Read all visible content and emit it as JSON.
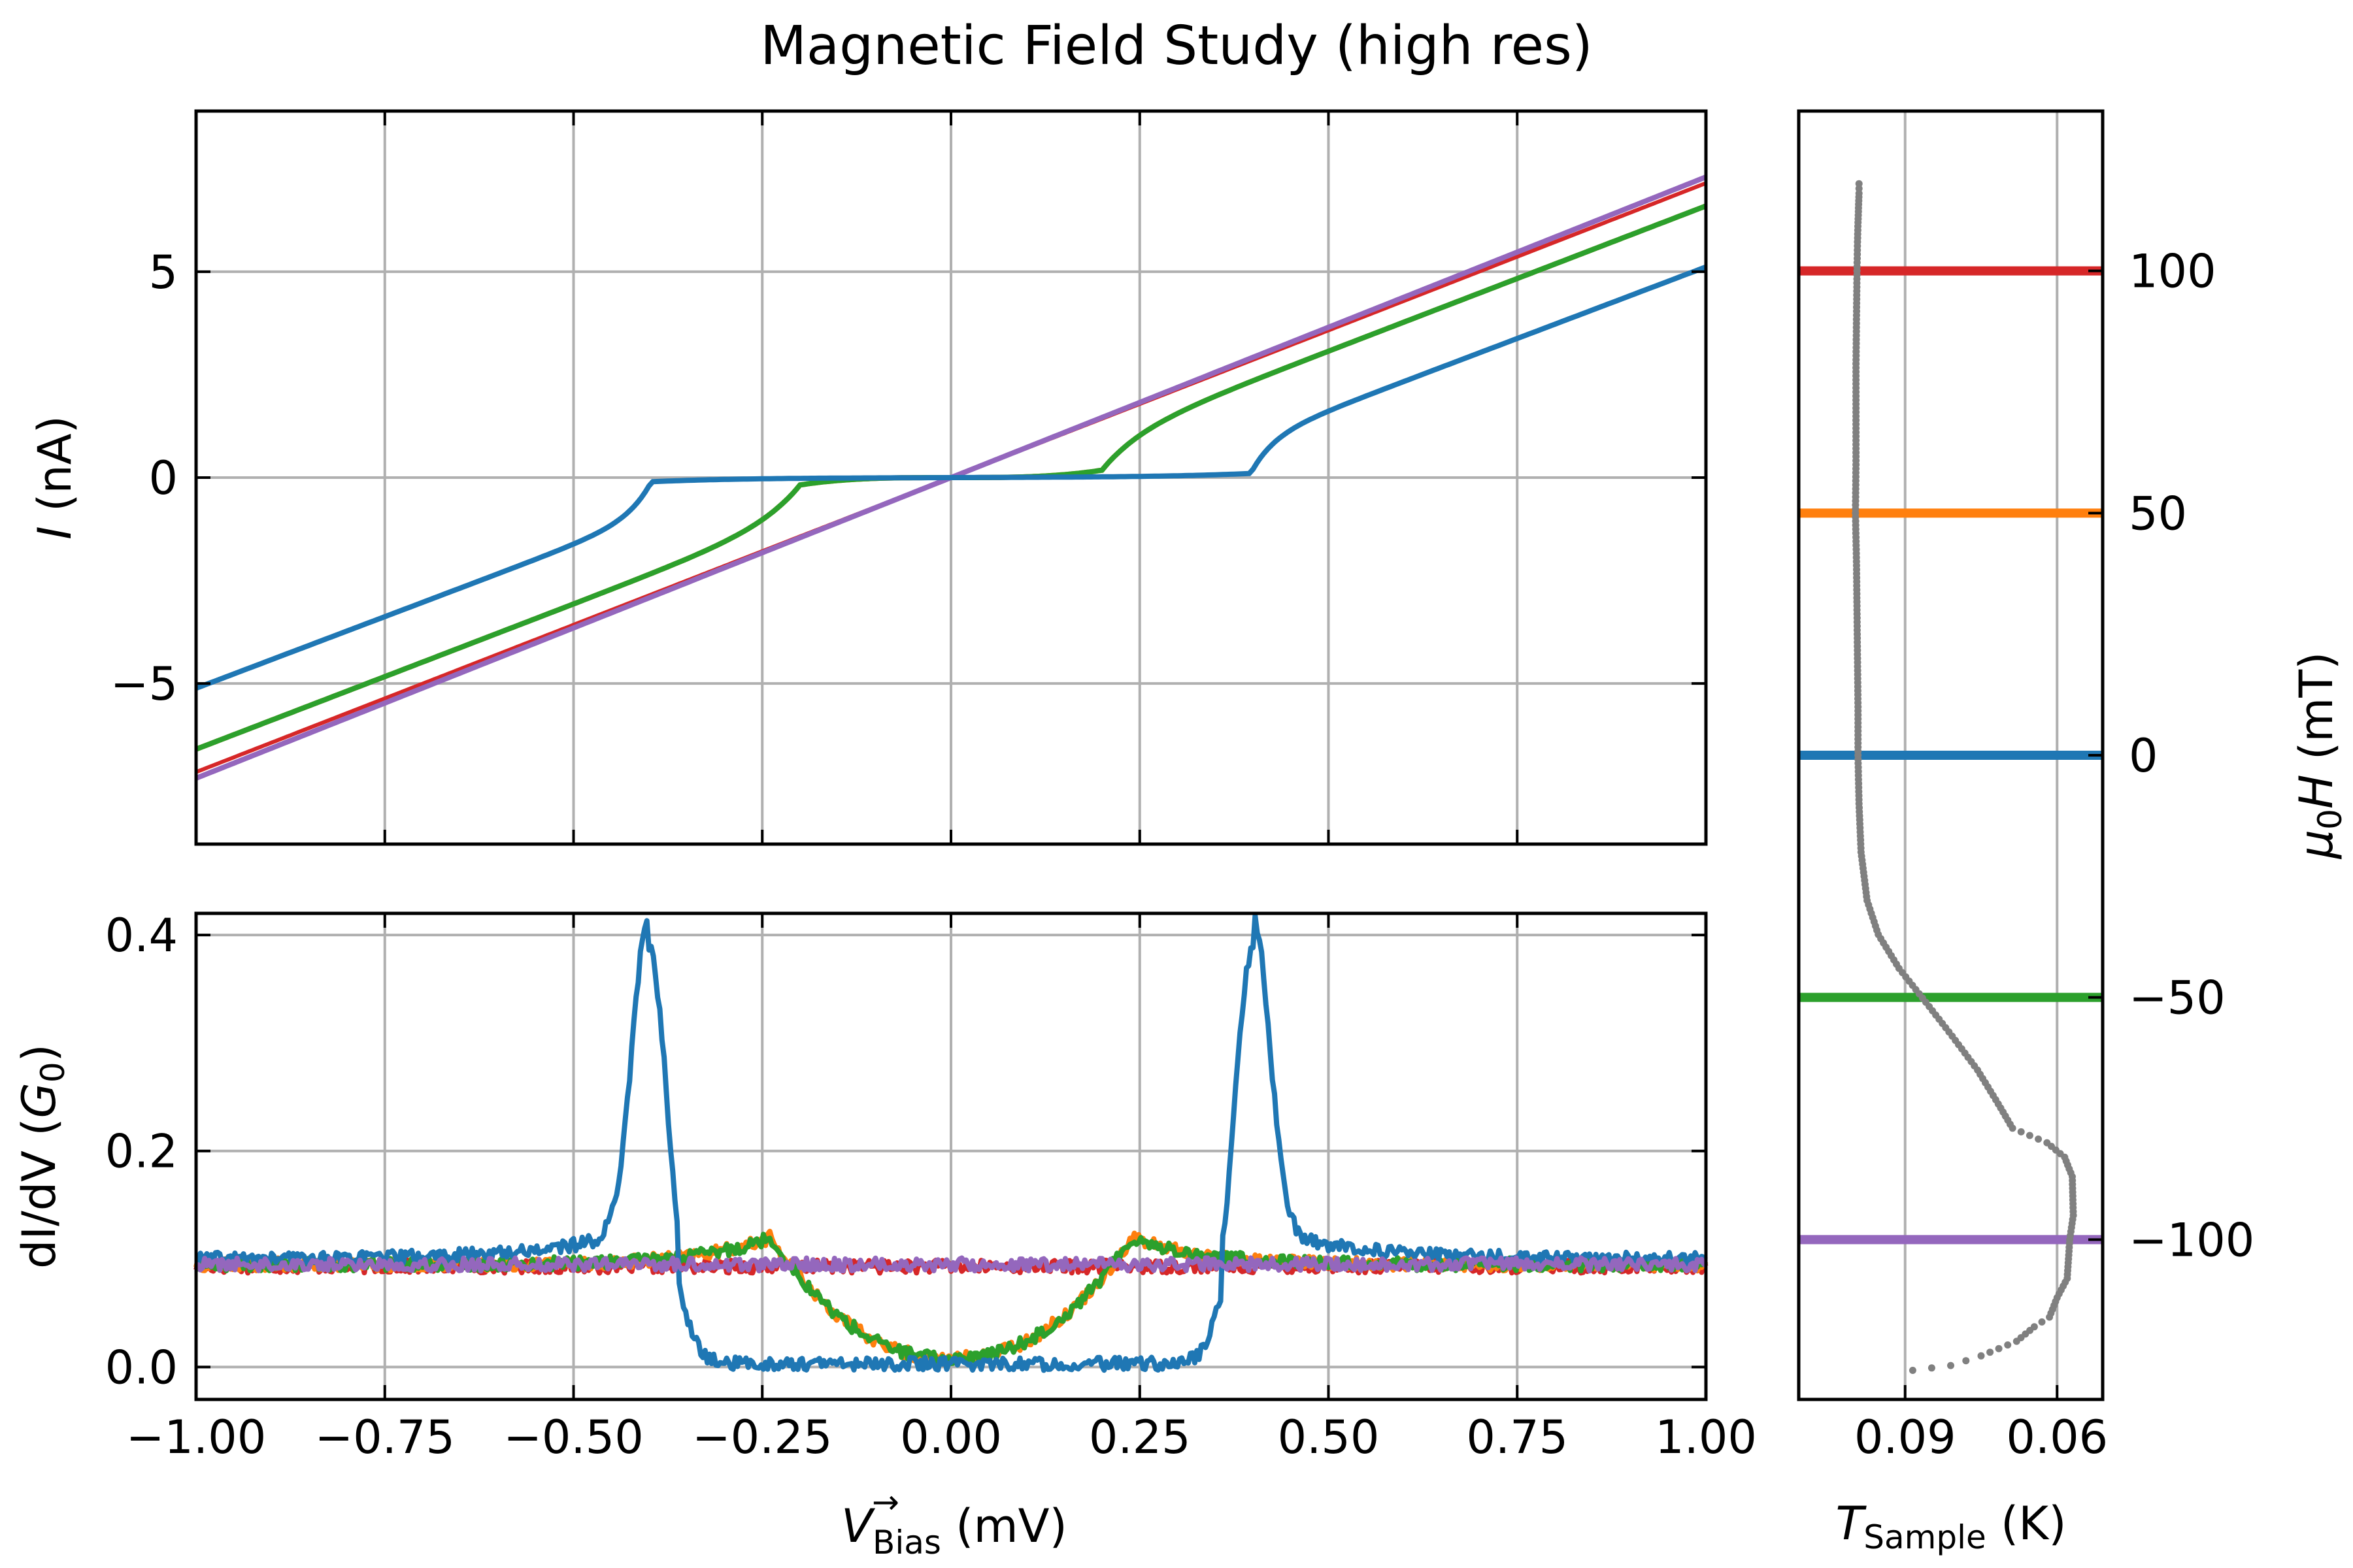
{
  "title": "Magnetic Field Study (high res)",
  "colors": {
    "blue": "#1f77b4",
    "orange": "#ff7f0e",
    "green": "#2ca02c",
    "red": "#d62728",
    "purple": "#9467bd",
    "gray": "#808080",
    "grid": "#b0b0b0"
  },
  "axes": {
    "x_label_main": "V",
    "x_label_sub": "Bias",
    "x_label_arrow": "→",
    "x_label_unit": " (mV)",
    "iv_ylabel_var": "I",
    "iv_ylabel_unit": " (nA)",
    "didv_ylabel_prefix": "dI/dV (",
    "didv_ylabel_var": "G",
    "didv_ylabel_sub": "0",
    "didv_ylabel_suffix": ")",
    "temp_xlabel_var": "T",
    "temp_xlabel_sub": "Sample",
    "temp_xlabel_unit": " (K)",
    "field_ylabel_mu": "μ",
    "field_ylabel_sub": "0",
    "field_ylabel_var": "H",
    "field_ylabel_unit": " (mT)"
  },
  "chart_data": [
    {
      "type": "line",
      "panel": "I-V",
      "xlabel": "V_Bias (mV)",
      "ylabel": "I (nA)",
      "xlim": [
        -1.0,
        1.0
      ],
      "ylim": [
        -8.9,
        8.9
      ],
      "grid": true,
      "xticks": [
        -1.0,
        -0.75,
        -0.5,
        -0.25,
        0.0,
        0.25,
        0.5,
        0.75,
        1.0
      ],
      "yticks": [
        -5,
        0,
        5
      ],
      "ytick_labels": [
        "−5",
        "0",
        "5"
      ],
      "series": [
        {
          "field_mT": 100,
          "color": "red",
          "shape": "linear",
          "slope": 7.15,
          "gap_mV": 0
        },
        {
          "field_mT": 50,
          "color": "orange",
          "shape": "bcs",
          "slope": 7.05,
          "gap_mV": 0.2
        },
        {
          "field_mT": -50,
          "color": "green",
          "shape": "bcs",
          "slope": 7.05,
          "gap_mV": 0.2
        },
        {
          "field_mT": -100,
          "color": "purple",
          "shape": "linear",
          "slope": 7.3,
          "gap_mV": 0
        },
        {
          "field_mT": 0,
          "color": "blue",
          "shape": "bcs",
          "slope": 6.95,
          "gap_mV": 0.395
        }
      ]
    },
    {
      "type": "line",
      "panel": "dI/dV",
      "xlabel": "V_Bias (mV)",
      "ylabel": "dI/dV (G0)",
      "xlim": [
        -1.0,
        1.0
      ],
      "ylim": [
        -0.03,
        0.42
      ],
      "grid": true,
      "xticks": [
        -1.0,
        -0.75,
        -0.5,
        -0.25,
        0.0,
        0.25,
        0.5,
        0.75,
        1.0
      ],
      "xtick_labels": [
        "−1.00",
        "−0.75",
        "−0.50",
        "−0.25",
        "0.00",
        "0.25",
        "0.50",
        "0.75",
        "1.00"
      ],
      "yticks": [
        0.0,
        0.2,
        0.4
      ],
      "ytick_labels": [
        "0.0",
        "0.2",
        "0.4"
      ],
      "series": [
        {
          "field_mT": 100,
          "color": "red",
          "shape": "flat",
          "level": 0.093
        },
        {
          "field_mT": 50,
          "color": "orange",
          "shape": "bcs",
          "level": 0.095,
          "gap_mV": 0.24,
          "peak": 0.12,
          "min": 0.008
        },
        {
          "field_mT": -50,
          "color": "green",
          "shape": "bcs",
          "level": 0.095,
          "gap_mV": 0.24,
          "peak": 0.12,
          "min": 0.008
        },
        {
          "field_mT": 0,
          "color": "blue",
          "shape": "bcs",
          "level": 0.1,
          "gap_mV": 0.4,
          "peak": 0.39,
          "min": 0.003
        },
        {
          "field_mT": -100,
          "color": "purple",
          "shape": "flat",
          "level": 0.095
        }
      ]
    },
    {
      "type": "scatter",
      "panel": "field-temperature",
      "xlabel": "T_Sample (K)",
      "ylabel": "μ0H (mT)",
      "xlim": [
        0.111,
        0.051
      ],
      "ylim": [
        -133,
        133
      ],
      "grid": true,
      "xticks": [
        0.09,
        0.06
      ],
      "xtick_labels": [
        "0.09",
        "0.06"
      ],
      "yticks": [
        100,
        50,
        0,
        -50,
        -100
      ],
      "ytick_labels": [
        "100",
        "50",
        "0",
        "−50",
        "−100"
      ],
      "hlines": [
        {
          "field_mT": 100,
          "color": "red"
        },
        {
          "field_mT": 50,
          "color": "orange"
        },
        {
          "field_mT": 0,
          "color": "blue"
        },
        {
          "field_mT": -50,
          "color": "green"
        },
        {
          "field_mT": -100,
          "color": "purple"
        }
      ],
      "points": [
        [
          0.0991,
          118
        ],
        [
          0.0991,
          116
        ],
        [
          0.0992,
          113
        ],
        [
          0.0993,
          110
        ],
        [
          0.0994,
          106
        ],
        [
          0.0995,
          100
        ],
        [
          0.0996,
          90
        ],
        [
          0.0997,
          80
        ],
        [
          0.0997,
          70
        ],
        [
          0.0997,
          60
        ],
        [
          0.0998,
          50
        ],
        [
          0.0996,
          40
        ],
        [
          0.0995,
          30
        ],
        [
          0.0994,
          20
        ],
        [
          0.0993,
          10
        ],
        [
          0.0993,
          0
        ],
        [
          0.0991,
          -10
        ],
        [
          0.0987,
          -20
        ],
        [
          0.0975,
          -30
        ],
        [
          0.0953,
          -37
        ],
        [
          0.0912,
          -44
        ],
        [
          0.0859,
          -51
        ],
        [
          0.0807,
          -58
        ],
        [
          0.0757,
          -65
        ],
        [
          0.0716,
          -72
        ],
        [
          0.0688,
          -77
        ],
        [
          0.062,
          -80
        ],
        [
          0.0585,
          -83
        ],
        [
          0.057,
          -87
        ],
        [
          0.0568,
          -95
        ],
        [
          0.0575,
          -100
        ],
        [
          0.058,
          -108
        ],
        [
          0.06,
          -112
        ],
        [
          0.0615,
          -116
        ],
        [
          0.0645,
          -118
        ],
        [
          0.068,
          -121
        ],
        [
          0.075,
          -124
        ],
        [
          0.081,
          -126
        ],
        [
          0.0885,
          -127
        ]
      ]
    }
  ]
}
